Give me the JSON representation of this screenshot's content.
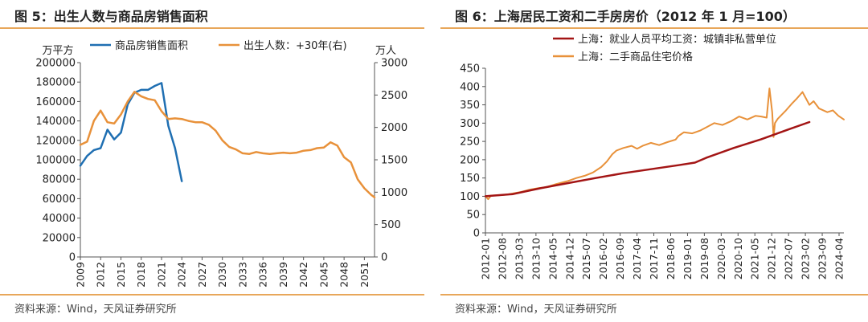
{
  "panels": {
    "left": {
      "title": "图 5：出生人数与商品房销售面积",
      "source": "资料来源：Wind，天风证券研究所"
    },
    "right": {
      "title": "图 6：上海居民工资和二手房房价（2012 年 1 月=100）",
      "source": "资料来源：Wind，天风证券研究所"
    }
  },
  "colors": {
    "rule": "#e8a75a",
    "blue": "#1f6fb2",
    "orange": "#e8913a",
    "darkred": "#a31515"
  },
  "chart_data": [
    {
      "type": "line",
      "title": "图 5：出生人数与商品房销售面积",
      "y_left_label": "万平方",
      "y_right_label": "万人",
      "y_left_ticks": [
        "0",
        "20000",
        "40000",
        "60000",
        "80000",
        "100000",
        "120000",
        "140000",
        "160000",
        "180000",
        "200000"
      ],
      "y_right_ticks": [
        "0",
        "500",
        "1000",
        "1500",
        "2000",
        "2500",
        "3000"
      ],
      "x_ticks": [
        "2009",
        "2012",
        "2015",
        "2018",
        "2021",
        "2024",
        "2027",
        "2030",
        "2033",
        "2036",
        "2039",
        "2042",
        "2045",
        "2048",
        "2051"
      ],
      "ylim_left": [
        0,
        200000
      ],
      "ylim_right": [
        0,
        3000
      ],
      "xlim": [
        2009,
        2052.5
      ],
      "legend_position": "top",
      "series": [
        {
          "name": "商品房销售面积",
          "axis": "left",
          "color": "#1f6fb2",
          "x": [
            2009,
            2010,
            2011,
            2012,
            2013,
            2014,
            2015,
            2016,
            2017,
            2018,
            2019,
            2020,
            2021,
            2022,
            2023,
            2024
          ],
          "y": [
            94000,
            104000,
            110000,
            112000,
            131000,
            121000,
            128000,
            157000,
            169000,
            172000,
            172000,
            176000,
            179000,
            135000,
            112000,
            78000
          ]
        },
        {
          "name": "出生人数：+30年(右)",
          "axis": "right",
          "color": "#e8913a",
          "x": [
            2009,
            2010,
            2011,
            2012,
            2013,
            2014,
            2015,
            2016,
            2017,
            2018,
            2019,
            2020,
            2021,
            2022,
            2023,
            2024,
            2025,
            2026,
            2027,
            2028,
            2029,
            2030,
            2031,
            2032,
            2033,
            2034,
            2035,
            2036,
            2037,
            2038,
            2039,
            2040,
            2041,
            2042,
            2043,
            2044,
            2045,
            2046,
            2047,
            2048,
            2049,
            2050,
            2051,
            2052,
            2052.5
          ],
          "y": [
            1730,
            1780,
            2100,
            2260,
            2080,
            2060,
            2200,
            2400,
            2550,
            2480,
            2440,
            2420,
            2250,
            2130,
            2140,
            2130,
            2100,
            2080,
            2080,
            2040,
            1950,
            1800,
            1700,
            1660,
            1600,
            1590,
            1620,
            1600,
            1590,
            1600,
            1610,
            1600,
            1610,
            1640,
            1650,
            1680,
            1690,
            1770,
            1720,
            1540,
            1460,
            1200,
            1060,
            960,
            920
          ]
        }
      ]
    },
    {
      "type": "line",
      "title": "图 6：上海居民工资和二手房房价（2012 年 1 月=100）",
      "y_ticks": [
        "0",
        "50",
        "100",
        "150",
        "200",
        "250",
        "300",
        "350",
        "400",
        "450"
      ],
      "ylim": [
        0,
        450
      ],
      "x_ticks": [
        "2012-01",
        "2012-08",
        "2013-03",
        "2013-10",
        "2014-05",
        "2014-12",
        "2015-07",
        "2016-02",
        "2016-09",
        "2017-04",
        "2017-11",
        "2018-06",
        "2019-01",
        "2019-08",
        "2020-03",
        "2020-10",
        "2021-05",
        "2021-12",
        "2022-07",
        "2023-02",
        "2023-09",
        "2024-04"
      ],
      "xlim": [
        2012.0,
        2025.0
      ],
      "legend_position": "top-left",
      "series": [
        {
          "name": "上海：就业人员平均工资：城镇非私营单位",
          "color": "#a31515",
          "x": [
            2012.0,
            2013.0,
            2014.0,
            2015.0,
            2016.0,
            2017.0,
            2018.0,
            2019.0,
            2019.6,
            2020.0,
            2021.0,
            2022.0,
            2023.0,
            2023.75
          ],
          "y": [
            100,
            106,
            122,
            136,
            150,
            163,
            174,
            185,
            192,
            205,
            232,
            256,
            283,
            303
          ]
        },
        {
          "name": "上海：二手商品住宅价格",
          "color": "#e8913a",
          "x": [
            2012.0,
            2012.1,
            2012.2,
            2012.5,
            2012.8,
            2013.0,
            2013.3,
            2013.6,
            2013.9,
            2014.2,
            2014.5,
            2014.8,
            2015.0,
            2015.3,
            2015.6,
            2015.9,
            2016.2,
            2016.4,
            2016.6,
            2016.75,
            2017.0,
            2017.3,
            2017.5,
            2017.7,
            2018.0,
            2018.3,
            2018.6,
            2018.9,
            2019.0,
            2019.1,
            2019.2,
            2019.5,
            2019.8,
            2020.0,
            2020.3,
            2020.6,
            2020.9,
            2021.2,
            2021.5,
            2021.8,
            2022.0,
            2022.2,
            2022.3,
            2022.4,
            2022.45,
            2022.5,
            2022.6,
            2022.9,
            2023.1,
            2023.3,
            2023.5,
            2023.75,
            2023.9,
            2024.1,
            2024.4,
            2024.6,
            2024.8,
            2025.0
          ],
          "y": [
            100,
            92,
            102,
            103,
            105,
            108,
            112,
            118,
            122,
            125,
            132,
            138,
            142,
            150,
            156,
            165,
            180,
            195,
            215,
            225,
            232,
            238,
            230,
            238,
            246,
            240,
            248,
            255,
            265,
            270,
            275,
            272,
            280,
            288,
            300,
            295,
            305,
            318,
            310,
            320,
            318,
            315,
            395,
            330,
            262,
            300,
            312,
            335,
            352,
            368,
            385,
            350,
            360,
            340,
            330,
            335,
            320,
            310
          ]
        }
      ]
    }
  ]
}
